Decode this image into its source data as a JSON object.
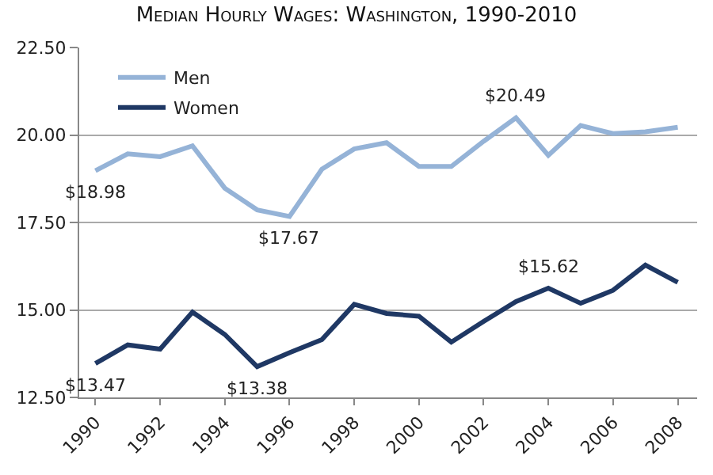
{
  "chart_data": {
    "type": "line",
    "title": "Median Hourly Wages: Washington, 1990-2010",
    "x": [
      1990,
      1991,
      1992,
      1993,
      1994,
      1995,
      1996,
      1997,
      1998,
      1999,
      2000,
      2001,
      2002,
      2003,
      2004,
      2005,
      2006,
      2007,
      2008
    ],
    "series": [
      {
        "name": "Men",
        "color": "#95b3d7",
        "values": [
          18.98,
          19.46,
          19.38,
          19.69,
          18.48,
          17.86,
          17.67,
          19.02,
          19.6,
          19.78,
          19.1,
          19.1,
          19.82,
          20.49,
          19.42,
          20.27,
          20.04,
          20.09,
          20.22
        ]
      },
      {
        "name": "Women",
        "color": "#1f3864",
        "values": [
          13.47,
          14.0,
          13.88,
          14.94,
          14.3,
          13.38,
          13.78,
          14.15,
          15.16,
          14.9,
          14.82,
          14.08,
          14.67,
          15.24,
          15.62,
          15.19,
          15.56,
          16.28,
          15.79
        ]
      }
    ],
    "annotations": [
      {
        "text": "$18.98",
        "x": 1990,
        "y": 18.98
      },
      {
        "text": "$17.67",
        "x": 1996,
        "y": 17.67
      },
      {
        "text": "$20.49",
        "x": 2003,
        "y": 20.49
      },
      {
        "text": "$13.47",
        "x": 1990,
        "y": 13.47
      },
      {
        "text": "$13.38",
        "x": 1995,
        "y": 13.38
      },
      {
        "text": "$15.62",
        "x": 2004,
        "y": 15.62
      }
    ],
    "xlim": [
      1989.5,
      2008.6
    ],
    "xticks": [
      1990,
      1992,
      1994,
      1996,
      1998,
      2000,
      2002,
      2004,
      2006,
      2008
    ],
    "ylim": [
      12.5,
      22.5
    ],
    "yticks": [
      {
        "value": 12.5,
        "label": "12.50"
      },
      {
        "value": 15,
        "label": "15.00"
      },
      {
        "value": 17.5,
        "label": "17.50"
      },
      {
        "value": 20,
        "label": "20.00"
      },
      {
        "value": 22.5,
        "label": "22.50"
      }
    ],
    "grid": "y",
    "legend": "top left",
    "marker": "none",
    "line_style": "solid"
  }
}
